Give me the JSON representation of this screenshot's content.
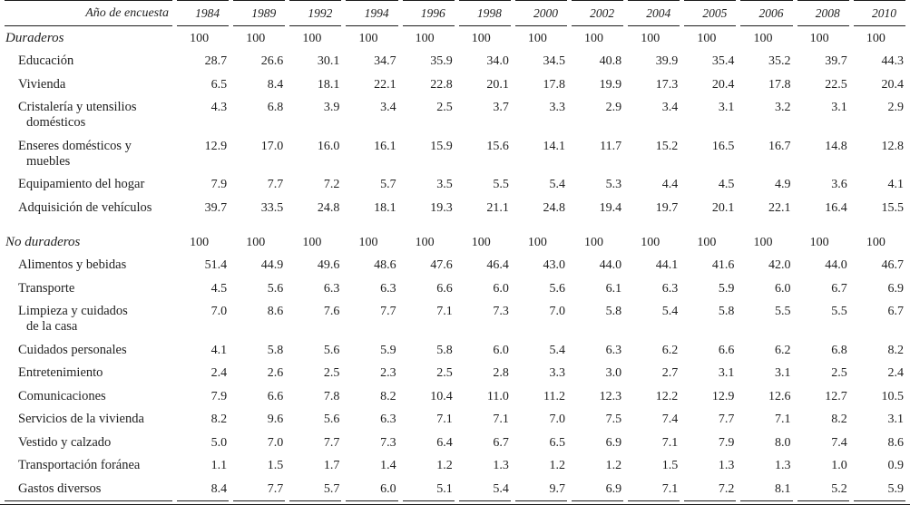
{
  "table": {
    "header_label": "Año de encuesta",
    "years": [
      "1984",
      "1989",
      "1992",
      "1994",
      "1996",
      "1998",
      "2000",
      "2002",
      "2004",
      "2005",
      "2006",
      "2008",
      "2010"
    ],
    "rows": [
      {
        "label": "Duraderos",
        "style": "section",
        "gap_before": false,
        "values": [
          "100",
          "100",
          "100",
          "100",
          "100",
          "100",
          "100",
          "100",
          "100",
          "100",
          "100",
          "100",
          "100"
        ]
      },
      {
        "label": "Educación",
        "style": "item",
        "gap_before": false,
        "values": [
          "28.7",
          "26.6",
          "30.1",
          "34.7",
          "35.9",
          "34.0",
          "34.5",
          "40.8",
          "39.9",
          "35.4",
          "35.2",
          "39.7",
          "44.3"
        ]
      },
      {
        "label": "Vivienda",
        "style": "item",
        "gap_before": false,
        "values": [
          "6.5",
          "8.4",
          "18.1",
          "22.1",
          "22.8",
          "20.1",
          "17.8",
          "19.9",
          "17.3",
          "20.4",
          "17.8",
          "22.5",
          "20.4"
        ]
      },
      {
        "label": "Cristalería y utensilios\ndomésticos",
        "style": "item",
        "gap_before": false,
        "values": [
          "4.3",
          "6.8",
          "3.9",
          "3.4",
          "2.5",
          "3.7",
          "3.3",
          "2.9",
          "3.4",
          "3.1",
          "3.2",
          "3.1",
          "2.9"
        ]
      },
      {
        "label": "Enseres domésticos y\nmuebles",
        "style": "item",
        "gap_before": false,
        "values": [
          "12.9",
          "17.0",
          "16.0",
          "16.1",
          "15.9",
          "15.6",
          "14.1",
          "11.7",
          "15.2",
          "16.5",
          "16.7",
          "14.8",
          "12.8"
        ]
      },
      {
        "label": "Equipamiento del hogar",
        "style": "item",
        "gap_before": false,
        "values": [
          "7.9",
          "7.7",
          "7.2",
          "5.7",
          "3.5",
          "5.5",
          "5.4",
          "5.3",
          "4.4",
          "4.5",
          "4.9",
          "3.6",
          "4.1"
        ]
      },
      {
        "label": "Adquisición de vehículos",
        "style": "item",
        "gap_before": false,
        "values": [
          "39.7",
          "33.5",
          "24.8",
          "18.1",
          "19.3",
          "21.1",
          "24.8",
          "19.4",
          "19.7",
          "20.1",
          "22.1",
          "16.4",
          "15.5"
        ]
      },
      {
        "label": "No duraderos",
        "style": "section",
        "gap_before": true,
        "values": [
          "100",
          "100",
          "100",
          "100",
          "100",
          "100",
          "100",
          "100",
          "100",
          "100",
          "100",
          "100",
          "100"
        ]
      },
      {
        "label": "Alimentos y bebidas",
        "style": "item",
        "gap_before": false,
        "values": [
          "51.4",
          "44.9",
          "49.6",
          "48.6",
          "47.6",
          "46.4",
          "43.0",
          "44.0",
          "44.1",
          "41.6",
          "42.0",
          "44.0",
          "46.7"
        ]
      },
      {
        "label": "Transporte",
        "style": "item",
        "gap_before": false,
        "values": [
          "4.5",
          "5.6",
          "6.3",
          "6.3",
          "6.6",
          "6.0",
          "5.6",
          "6.1",
          "6.3",
          "5.9",
          "6.0",
          "6.7",
          "6.9"
        ]
      },
      {
        "label": "Limpieza y cuidados\nde la casa",
        "style": "item",
        "gap_before": false,
        "values": [
          "7.0",
          "8.6",
          "7.6",
          "7.7",
          "7.1",
          "7.3",
          "7.0",
          "5.8",
          "5.4",
          "5.8",
          "5.5",
          "5.5",
          "6.7"
        ]
      },
      {
        "label": "Cuidados personales",
        "style": "item",
        "gap_before": false,
        "values": [
          "4.1",
          "5.8",
          "5.6",
          "5.9",
          "5.8",
          "6.0",
          "5.4",
          "6.3",
          "6.2",
          "6.6",
          "6.2",
          "6.8",
          "8.2"
        ]
      },
      {
        "label": "Entretenimiento",
        "style": "item",
        "gap_before": false,
        "values": [
          "2.4",
          "2.6",
          "2.5",
          "2.3",
          "2.5",
          "2.8",
          "3.3",
          "3.0",
          "2.7",
          "3.1",
          "3.1",
          "2.5",
          "2.4"
        ]
      },
      {
        "label": "Comunicaciones",
        "style": "item",
        "gap_before": false,
        "values": [
          "7.9",
          "6.6",
          "7.8",
          "8.2",
          "10.4",
          "11.0",
          "11.2",
          "12.3",
          "12.2",
          "12.9",
          "12.6",
          "12.7",
          "10.5"
        ]
      },
      {
        "label": "Servicios de la vivienda",
        "style": "item",
        "gap_before": false,
        "values": [
          "8.2",
          "9.6",
          "5.6",
          "6.3",
          "7.1",
          "7.1",
          "7.0",
          "7.5",
          "7.4",
          "7.7",
          "7.1",
          "8.2",
          "3.1"
        ]
      },
      {
        "label": "Vestido y calzado",
        "style": "item",
        "gap_before": false,
        "values": [
          "5.0",
          "7.0",
          "7.7",
          "7.3",
          "6.4",
          "6.7",
          "6.5",
          "6.9",
          "7.1",
          "7.9",
          "8.0",
          "7.4",
          "8.6"
        ]
      },
      {
        "label": "Transportación foránea",
        "style": "item",
        "gap_before": false,
        "values": [
          "1.1",
          "1.5",
          "1.7",
          "1.4",
          "1.2",
          "1.3",
          "1.2",
          "1.2",
          "1.5",
          "1.3",
          "1.3",
          "1.0",
          "0.9"
        ]
      },
      {
        "label": "Gastos diversos",
        "style": "item",
        "gap_before": false,
        "values": [
          "8.4",
          "7.7",
          "5.7",
          "6.0",
          "5.1",
          "5.4",
          "9.7",
          "6.9",
          "7.1",
          "7.2",
          "8.1",
          "5.2",
          "5.9"
        ]
      }
    ],
    "colors": {
      "text": "#1f1f1f",
      "rule": "#1c1c1c",
      "background": "#ffffff"
    }
  }
}
